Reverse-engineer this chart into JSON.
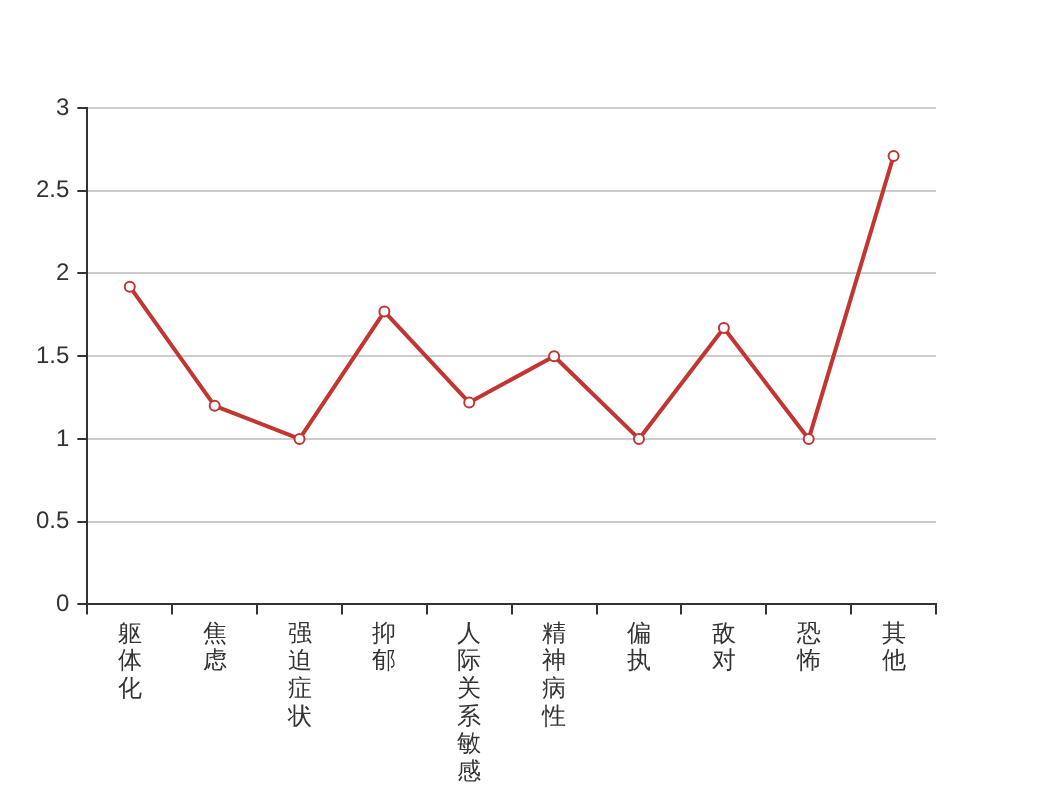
{
  "chart_data": {
    "type": "line",
    "categories": [
      "躯体化",
      "焦虑",
      "强迫症状",
      "抑郁",
      "人际关系敏感",
      "精神病性",
      "偏执",
      "敌对",
      "恐怖",
      "其他"
    ],
    "series": [
      {
        "color": "#c23531",
        "values": [
          1.92,
          1.2,
          1.0,
          1.77,
          1.22,
          1.5,
          1.0,
          1.67,
          1.0,
          2.71
        ]
      }
    ],
    "ylim": [
      0,
      3
    ],
    "yticks": [
      0,
      0.5,
      1,
      1.5,
      2,
      2.5,
      3
    ],
    "grid": "y",
    "marker": "circle",
    "line_style": "solid",
    "legend": false
  }
}
